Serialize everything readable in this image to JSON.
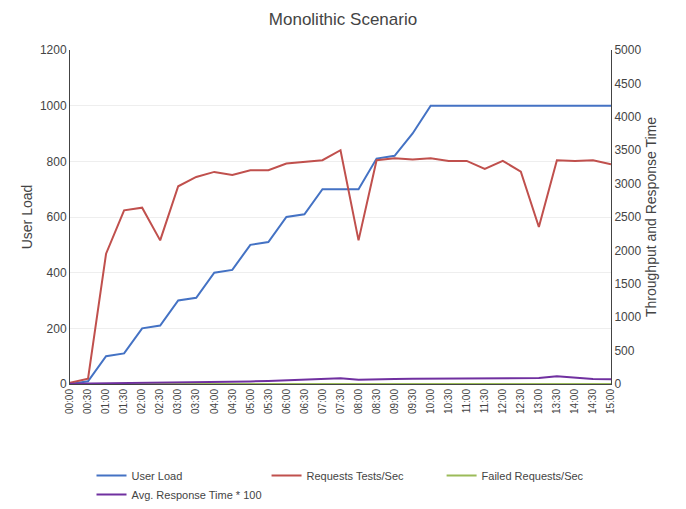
{
  "chart_data": {
    "type": "line",
    "title": "Monolithic Scenario",
    "ylabel": "User Load",
    "y2label": "Throughput and Response Time",
    "categories": [
      "00:00",
      "00:30",
      "01:00",
      "01:30",
      "02:00",
      "02:30",
      "03:00",
      "03:30",
      "04:00",
      "04:30",
      "05:00",
      "05:30",
      "06:00",
      "06:30",
      "07:00",
      "07:30",
      "08:00",
      "08:30",
      "09:00",
      "09:30",
      "10:00",
      "10:30",
      "11:00",
      "11:30",
      "12:00",
      "12:30",
      "13:00",
      "13:30",
      "14:00",
      "14:30",
      "15:00"
    ],
    "series": [
      {
        "name": "User Load",
        "color": "#4472C4",
        "values": [
          0,
          10,
          100,
          110,
          200,
          210,
          300,
          310,
          400,
          410,
          500,
          510,
          600,
          610,
          700,
          700,
          700,
          810,
          820,
          900,
          1000,
          1000,
          1000,
          1000,
          1000,
          1000,
          1000,
          1000,
          1000,
          1000,
          1000
        ]
      },
      {
        "name": "Requests Tests/Sec",
        "color": "#C0504D",
        "axis": "y2",
        "values": [
          20,
          80,
          1950,
          2600,
          2640,
          2150,
          2960,
          3100,
          3175,
          3130,
          3200,
          3200,
          3300,
          3325,
          3350,
          3500,
          2150,
          3350,
          3380,
          3360,
          3380,
          3340,
          3340,
          3220,
          3340,
          3180,
          2350,
          3350,
          3340,
          3350,
          3290
        ]
      },
      {
        "name": "Failed Requests/Sec",
        "color": "#9BBB59",
        "axis": "y2",
        "values": [
          0,
          0,
          0,
          0,
          0,
          0,
          0,
          0,
          0,
          0,
          0,
          0,
          0,
          0,
          0,
          0,
          0,
          0,
          0,
          0,
          0,
          0,
          0,
          0,
          0,
          0,
          0,
          0,
          0,
          0,
          0
        ]
      },
      {
        "name": "Avg. Response Time * 100",
        "color": "#7030A0",
        "axis": "y2",
        "values": [
          5,
          8,
          8,
          10,
          15,
          15,
          18,
          22,
          28,
          32,
          38,
          45,
          55,
          60,
          80,
          85,
          65,
          75,
          75,
          80,
          80,
          80,
          82,
          85,
          85,
          85,
          90,
          115,
          90,
          75,
          70
        ]
      }
    ],
    "ylim": [
      0,
      1200
    ],
    "yticks": [
      0,
      200,
      400,
      600,
      800,
      1000,
      1200
    ],
    "y2lim": [
      0,
      5000
    ],
    "y2ticks": [
      0,
      500,
      1000,
      1500,
      2000,
      2500,
      3000,
      3500,
      4000,
      4500,
      5000
    ],
    "grid": true,
    "legend": "bottom"
  }
}
